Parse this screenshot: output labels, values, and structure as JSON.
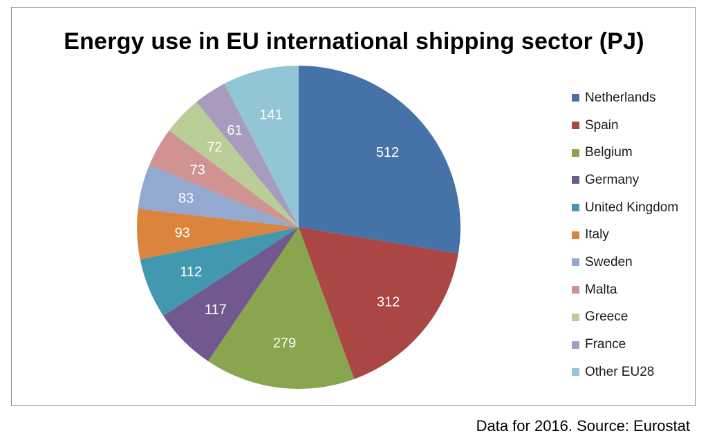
{
  "chart_data": {
    "type": "pie",
    "title": "Energy use in EU international shipping sector (PJ)",
    "categories": [
      "Netherlands",
      "Spain",
      "Belgium",
      "Germany",
      "United Kingdom",
      "Italy",
      "Sweden",
      "Malta",
      "Greece",
      "France",
      "Other EU28"
    ],
    "values": [
      512,
      312,
      279,
      117,
      112,
      93,
      83,
      73,
      72,
      61,
      141
    ],
    "colors": [
      "#4572a7",
      "#aa4643",
      "#89a54e",
      "#71588f",
      "#4198af",
      "#db843d",
      "#93a9cf",
      "#d19392",
      "#b9cd96",
      "#a99bbd",
      "#92c5d6"
    ],
    "legend": "right",
    "start_angle": "12 o'clock",
    "direction": "clockwise"
  },
  "footer": {
    "source": "Data for 2016. Source: Eurostat"
  }
}
